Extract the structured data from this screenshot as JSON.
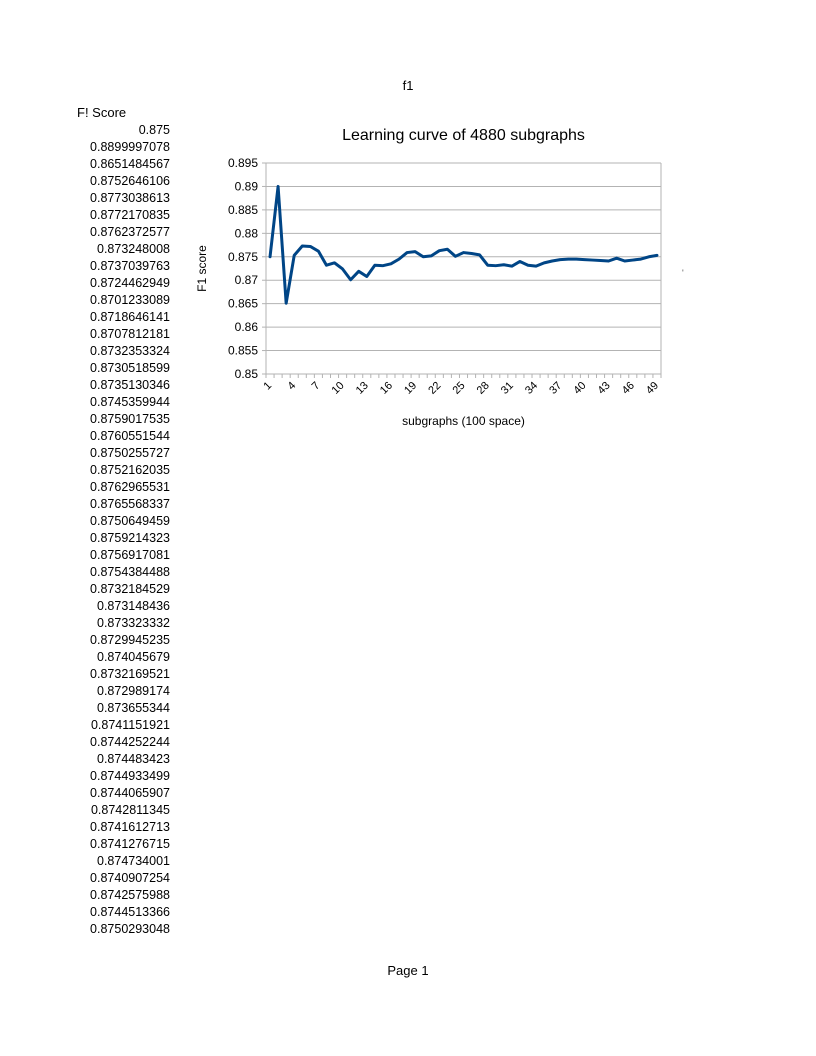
{
  "sheet_title": "f1",
  "column": {
    "header": "F! Score",
    "values": [
      "0.875",
      "0.8899997078",
      "0.8651484567",
      "0.8752646106",
      "0.8773038613",
      "0.8772170835",
      "0.8762372577",
      "0.873248008",
      "0.8737039763",
      "0.8724462949",
      "0.8701233089",
      "0.8718646141",
      "0.8707812181",
      "0.8732353324",
      "0.8730518599",
      "0.8735130346",
      "0.8745359944",
      "0.8759017535",
      "0.8760551544",
      "0.8750255727",
      "0.8752162035",
      "0.8762965531",
      "0.8765568337",
      "0.8750649459",
      "0.8759214323",
      "0.8756917081",
      "0.8754384488",
      "0.8732184529",
      "0.873148436",
      "0.873323332",
      "0.8729945235",
      "0.874045679",
      "0.8732169521",
      "0.872989174",
      "0.873655344",
      "0.8741151921",
      "0.8744252244",
      "0.874483423",
      "0.8744933499",
      "0.8744065907",
      "0.8742811345",
      "0.8741612713",
      "0.8741276715",
      "0.874734001",
      "0.8740907254",
      "0.8742575988",
      "0.8744513366",
      "0.8750293048"
    ]
  },
  "chart_data": {
    "type": "line",
    "title": "Learning curve of 4880 subgraphs",
    "xlabel": "subgraphs (100 space)",
    "ylabel": "F1 score",
    "ylim": [
      0.85,
      0.895
    ],
    "yticks": [
      "0.895",
      "0.89",
      "0.885",
      "0.88",
      "0.875",
      "0.87",
      "0.865",
      "0.86",
      "0.855",
      "0.85"
    ],
    "xtick_labels": [
      "1",
      "4",
      "7",
      "10",
      "13",
      "16",
      "19",
      "22",
      "25",
      "28",
      "31",
      "34",
      "37",
      "40",
      "43",
      "46",
      "49"
    ],
    "x": [
      1,
      2,
      3,
      4,
      5,
      6,
      7,
      8,
      9,
      10,
      11,
      12,
      13,
      14,
      15,
      16,
      17,
      18,
      19,
      20,
      21,
      22,
      23,
      24,
      25,
      26,
      27,
      28,
      29,
      30,
      31,
      32,
      33,
      34,
      35,
      36,
      37,
      38,
      39,
      40,
      41,
      42,
      43,
      44,
      45,
      46,
      47,
      48,
      49
    ],
    "grid": true,
    "legend": "none",
    "series": [
      {
        "color": "#004586",
        "values": [
          0.875,
          0.89,
          0.8651,
          0.8753,
          0.8773,
          0.8772,
          0.8762,
          0.8732,
          0.8737,
          0.8724,
          0.8701,
          0.8719,
          0.8708,
          0.8732,
          0.8731,
          0.8735,
          0.8745,
          0.8759,
          0.8761,
          0.875,
          0.8752,
          0.8763,
          0.8766,
          0.8751,
          0.8759,
          0.8757,
          0.8754,
          0.8732,
          0.8731,
          0.8733,
          0.873,
          0.874,
          0.8732,
          0.873,
          0.8737,
          0.8741,
          0.8744,
          0.8745,
          0.8745,
          0.8744,
          0.8743,
          0.8742,
          0.8741,
          0.8747,
          0.8741,
          0.8743,
          0.8745,
          0.875,
          0.8753
        ]
      }
    ]
  },
  "stray_mark": "'",
  "footer": "Page 1"
}
